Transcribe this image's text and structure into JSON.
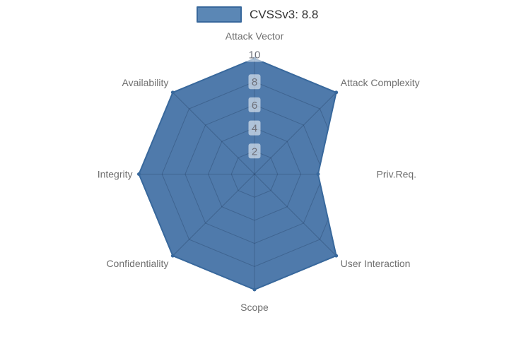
{
  "chart_data": {
    "type": "radar",
    "legend_label": "CVSSv3: 8.8",
    "axes": [
      "Attack Vector",
      "Attack Complexity",
      "Priv.Req.",
      "User Interaction",
      "Scope",
      "Confidentiality",
      "Integrity",
      "Availability"
    ],
    "series": [
      {
        "name": "CVSSv3: 8.8",
        "values": [
          10,
          10,
          5.5,
          10,
          10,
          10,
          10,
          10
        ]
      }
    ],
    "radial_ticks": [
      2,
      4,
      6,
      8,
      10
    ],
    "range": [
      0,
      10
    ],
    "grid_shape": "polygon",
    "legend_position": "top-center",
    "colors": {
      "series_fill": "#4f7aab",
      "series_line": "#38689c",
      "marker": "#38689c",
      "grid_line": "rgba(23,43,77,0.28)",
      "tick_text": "#6e7079",
      "tick_bg": "rgba(255,255,255,0.55)",
      "axis_label": "#6f6f6f",
      "legend_text": "#333333",
      "legend_swatch_fill": "#5b87b5",
      "legend_swatch_border": "#38689c"
    }
  }
}
